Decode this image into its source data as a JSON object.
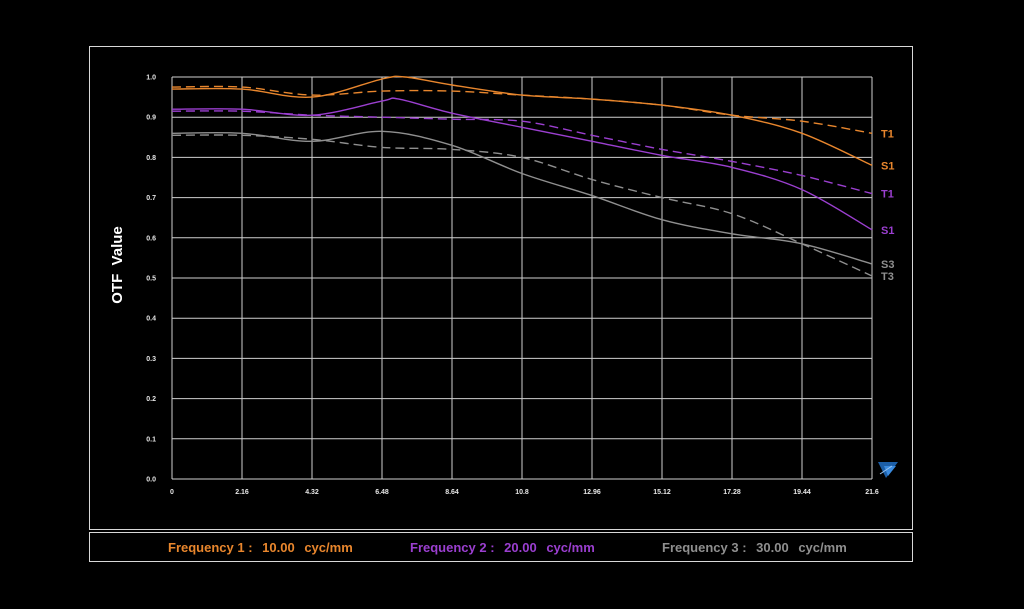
{
  "chart_data": {
    "type": "line",
    "ylabel": "OTF  Value",
    "xlabel": "",
    "xlim": [
      0,
      21.6
    ],
    "ylim": [
      0,
      1.0
    ],
    "x_ticks": [
      "0",
      "2.16",
      "4.32",
      "6.48",
      "8.64",
      "10.8",
      "12.96",
      "15.12",
      "17.28",
      "19.44",
      "21.6"
    ],
    "y_ticks": [
      "0.0",
      "0.1",
      "0.2",
      "0.3",
      "0.4",
      "0.5",
      "0.6",
      "0.7",
      "0.8",
      "0.9",
      "1.0"
    ],
    "grid": true,
    "colors": {
      "orange": "#e8862d",
      "purple": "#9b3fd0",
      "gray": "#8f8f8f",
      "grid": "#cfcfcf"
    },
    "series": [
      {
        "name": "S1",
        "frequency": 1,
        "style": "solid",
        "color": "#e8862d",
        "x": [
          0,
          2.16,
          4.32,
          6.48,
          7.2,
          8.64,
          10.8,
          12.96,
          15.12,
          17.28,
          19.44,
          21.6
        ],
        "y": [
          0.97,
          0.97,
          0.95,
          0.995,
          1.0,
          0.98,
          0.955,
          0.945,
          0.93,
          0.905,
          0.86,
          0.78
        ]
      },
      {
        "name": "T1",
        "frequency": 1,
        "style": "dashed",
        "color": "#e8862d",
        "x": [
          0,
          2.16,
          4.32,
          6.48,
          8.64,
          10.8,
          12.96,
          15.12,
          17.28,
          19.44,
          21.6
        ],
        "y": [
          0.975,
          0.975,
          0.955,
          0.965,
          0.965,
          0.955,
          0.945,
          0.93,
          0.905,
          0.89,
          0.86
        ]
      },
      {
        "name": "S1",
        "frequency": 2,
        "style": "solid",
        "color": "#9b3fd0",
        "x": [
          0,
          2.16,
          4.32,
          6.48,
          7.0,
          8.64,
          10.8,
          12.96,
          15.12,
          17.28,
          19.44,
          21.6
        ],
        "y": [
          0.92,
          0.92,
          0.905,
          0.94,
          0.945,
          0.91,
          0.875,
          0.84,
          0.805,
          0.775,
          0.72,
          0.62
        ]
      },
      {
        "name": "T1",
        "frequency": 2,
        "style": "dashed",
        "color": "#9b3fd0",
        "x": [
          0,
          2.16,
          4.32,
          6.48,
          8.64,
          10.8,
          12.96,
          15.12,
          17.28,
          19.44,
          21.6
        ],
        "y": [
          0.915,
          0.915,
          0.905,
          0.9,
          0.895,
          0.89,
          0.855,
          0.82,
          0.79,
          0.755,
          0.71
        ]
      },
      {
        "name": "S3",
        "frequency": 3,
        "style": "solid",
        "color": "#8f8f8f",
        "x": [
          0,
          2.16,
          4.32,
          6.48,
          8.64,
          10.8,
          12.96,
          15.12,
          17.28,
          19.44,
          21.6
        ],
        "y": [
          0.86,
          0.86,
          0.84,
          0.865,
          0.83,
          0.76,
          0.705,
          0.645,
          0.61,
          0.585,
          0.535
        ]
      },
      {
        "name": "T3",
        "frequency": 3,
        "style": "dashed",
        "color": "#8f8f8f",
        "x": [
          0,
          2.16,
          4.32,
          6.48,
          8.64,
          10.8,
          12.96,
          15.12,
          17.28,
          19.44,
          21.6
        ],
        "y": [
          0.855,
          0.855,
          0.845,
          0.825,
          0.82,
          0.8,
          0.745,
          0.7,
          0.66,
          0.585,
          0.505
        ]
      }
    ],
    "end_labels": [
      {
        "text": "T1",
        "color": "#e8862d",
        "y": 0.86
      },
      {
        "text": "S1",
        "color": "#e8862d",
        "y": 0.78
      },
      {
        "text": "T1",
        "color": "#9b3fd0",
        "y": 0.71
      },
      {
        "text": "S1",
        "color": "#9b3fd0",
        "y": 0.62
      },
      {
        "text": "S3",
        "color": "#8f8f8f",
        "y": 0.535
      },
      {
        "text": "T3",
        "color": "#8f8f8f",
        "y": 0.505
      }
    ]
  },
  "legend": {
    "items": [
      {
        "label": "Frequency 1 :",
        "value": "10.00",
        "unit": "cyc/mm",
        "color": "#e8862d"
      },
      {
        "label": "Frequency 2 :",
        "value": "20.00",
        "unit": "cyc/mm",
        "color": "#9b3fd0"
      },
      {
        "label": "Frequency 3 :",
        "value": "30.00",
        "unit": "cyc/mm",
        "color": "#8f8f8f"
      }
    ]
  }
}
